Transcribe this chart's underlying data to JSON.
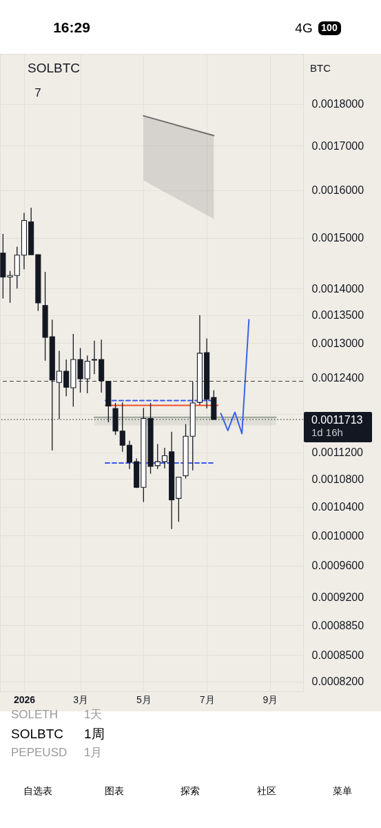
{
  "chart_data": {
    "type": "candlestick",
    "title": "SOLBTC",
    "x": [
      "2025-12-15",
      "2025-12-22",
      "2025-12-29",
      "2026-01-05",
      "2026-01-12",
      "2026-01-19",
      "2026-01-26",
      "2026-02-02",
      "2026-02-09",
      "2026-02-16",
      "2026-02-23",
      "2026-03-02",
      "2026-03-09",
      "2026-03-16",
      "2026-03-23",
      "2026-03-30",
      "2026-04-06",
      "2026-04-13",
      "2026-04-20",
      "2026-04-27",
      "2026-05-04",
      "2026-05-11",
      "2026-05-18",
      "2026-05-25",
      "2026-06-01",
      "2026-06-08",
      "2026-06-15",
      "2026-06-22",
      "2026-06-29",
      "2026-07-06",
      "2026-07-13"
    ],
    "ohlc": [
      [
        0.001469,
        0.001508,
        0.001381,
        0.001422
      ],
      [
        0.001422,
        0.001434,
        0.001373,
        0.001425
      ],
      [
        0.001425,
        0.001482,
        0.0014,
        0.001465
      ],
      [
        0.001465,
        0.001552,
        0.001437,
        0.001536
      ],
      [
        0.001533,
        0.001563,
        0.001466,
        0.001466
      ],
      [
        0.001466,
        0.001466,
        0.001358,
        0.001373
      ],
      [
        0.001368,
        0.001432,
        0.001269,
        0.00131
      ],
      [
        0.001311,
        0.001342,
        0.001123,
        0.001236
      ],
      [
        0.001232,
        0.001286,
        0.001172,
        0.001251
      ],
      [
        0.001251,
        0.001271,
        0.001209,
        0.001224
      ],
      [
        0.001223,
        0.001316,
        0.001192,
        0.001271
      ],
      [
        0.001271,
        0.001291,
        0.001215,
        0.001238
      ],
      [
        0.001238,
        0.001278,
        0.001214,
        0.001268
      ],
      [
        0.00127,
        0.001304,
        0.001246,
        0.001271
      ],
      [
        0.001271,
        0.001306,
        0.001215,
        0.001235
      ],
      [
        0.001234,
        0.001234,
        0.001167,
        0.001193
      ],
      [
        0.001189,
        0.001198,
        0.001147,
        0.001153
      ],
      [
        0.001153,
        0.001199,
        0.001121,
        0.001131
      ],
      [
        0.001131,
        0.001138,
        0.001095,
        0.001105
      ],
      [
        0.001106,
        0.001111,
        0.001067,
        0.001068
      ],
      [
        0.001068,
        0.00119,
        0.001047,
        0.001173
      ],
      [
        0.001173,
        0.001198,
        0.001088,
        0.001099
      ],
      [
        0.0011,
        0.001133,
        0.001095,
        0.001106
      ],
      [
        0.001106,
        0.001127,
        0.001096,
        0.001115
      ],
      [
        0.001121,
        0.001152,
        0.001009,
        0.00105
      ],
      [
        0.001052,
        0.001083,
        0.001019,
        0.001083
      ],
      [
        0.001085,
        0.001164,
        0.001081,
        0.001145
      ],
      [
        0.001145,
        0.001233,
        0.001093,
        0.001198
      ],
      [
        0.001199,
        0.00135,
        0.001195,
        0.001282
      ],
      [
        0.001283,
        0.001308,
        0.001189,
        0.001204
      ],
      [
        0.001207,
        0.001219,
        0.0011713,
        0.0011713
      ]
    ],
    "colors": [
      "#131722",
      "#ffffff",
      "#ffffff",
      "#ffffff",
      "#131722",
      "#131722",
      "#131722",
      "#131722",
      "#ffffff",
      "#131722",
      "#ffffff",
      "#131722",
      "#ffffff",
      "#ffffff",
      "#131722",
      "#131722",
      "#131722",
      "#131722",
      "#131722",
      "#131722",
      "#ffffff",
      "#131722",
      "#ffffff",
      "#ffffff",
      "#131722",
      "#ffffff",
      "#ffffff",
      "#ffffff",
      "#ffffff",
      "#131722",
      "#131722"
    ],
    "xlim": [
      "2025-12-12",
      "2026-10-10"
    ],
    "xticks": [
      {
        "value": "2026-01-05",
        "label": "2026"
      },
      {
        "value": "2026-03-02",
        "label": "3月"
      },
      {
        "value": "2026-05-04",
        "label": "5月"
      },
      {
        "value": "2026-07-06",
        "label": "7月"
      },
      {
        "value": "2026-09-07",
        "label": "9月"
      }
    ],
    "ylim": [
      0.000809,
      0.001927
    ],
    "yticks": [
      {
        "value": 0.0018,
        "label": "0.0018000"
      },
      {
        "value": 0.0017,
        "label": "0.0017000"
      },
      {
        "value": 0.0016,
        "label": "0.0016000"
      },
      {
        "value": 0.0015,
        "label": "0.0015000"
      },
      {
        "value": 0.0014,
        "label": "0.0014000"
      },
      {
        "value": 0.00135,
        "label": "0.0013500"
      },
      {
        "value": 0.0013,
        "label": "0.0013000"
      },
      {
        "value": 0.00124,
        "label": "0.0012400"
      },
      {
        "value": 0.00118,
        "label": null
      },
      {
        "value": 0.00112,
        "label": "0.0011200"
      },
      {
        "value": 0.00108,
        "label": "0.0010800"
      },
      {
        "value": 0.00104,
        "label": "0.0010400"
      },
      {
        "value": 0.001,
        "label": "0.0010000"
      },
      {
        "value": 0.00096,
        "label": "0.0009600"
      },
      {
        "value": 0.00092,
        "label": "0.0009200"
      },
      {
        "value": 0.000885,
        "label": "0.0008850"
      },
      {
        "value": 0.00085,
        "label": "0.0008500"
      },
      {
        "value": 0.00082,
        "label": "0.0008200"
      }
    ],
    "log": true,
    "grid": true,
    "series": [
      {
        "type": "line",
        "x": [
          "2026-05-04",
          "2026-07-13"
        ],
        "values": [
          0.001771,
          0.001724
        ],
        "lower": [
          0.001622,
          0.001539
        ],
        "upper": [
          0.001771,
          0.001724
        ],
        "color": "#6e6e6e"
      },
      {
        "type": "line",
        "x": [
          "2026-03-16",
          "2026-09-13"
        ],
        "values": [
          0.001175,
          0.001175
        ],
        "lower": [
          0.001162,
          0.001162
        ],
        "upper": [
          0.001175,
          0.001175
        ],
        "color": "#9aa39a"
      },
      {
        "type": "line",
        "x": [
          "2026-03-27",
          "2026-07-10"
        ],
        "values": [
          0.001202,
          0.001202
        ],
        "color": "#3a57e8",
        "line_style": "dashed"
      },
      {
        "type": "line",
        "x": [
          "2026-03-27",
          "2026-07-13"
        ],
        "values": [
          0.001104,
          0.001104
        ],
        "color": "#3a57e8",
        "line_style": "dashed"
      },
      {
        "type": "line",
        "x": [
          "2026-03-27",
          "2026-07-17"
        ],
        "values": [
          0.001194,
          0.001194
        ],
        "color": "#f0502d"
      },
      {
        "type": "line",
        "x": [
          "2026-07-20",
          "2026-07-27",
          "2026-08-03",
          "2026-08-10",
          "2026-08-17"
        ],
        "values": [
          0.001181,
          0.001154,
          0.001183,
          0.001149,
          0.001342
        ],
        "color": "#3a62e8"
      }
    ],
    "ref_lines": [
      {
        "axis": "y",
        "value": 0.001234,
        "line_style": "dashed",
        "color": "#3b3b3b"
      },
      {
        "axis": "y",
        "value": 0.0011713,
        "label": "0.0011713",
        "line_style": "dotted",
        "color": "#131722"
      }
    ],
    "annotations": [
      "16:29",
      "4G",
      "100",
      "7",
      "BTC",
      "1d 16h",
      "SOLETH",
      "1天",
      "SOLBTC",
      "1周",
      "PEPEUSD",
      "1月",
      "自选表",
      "图表",
      "探索",
      "社区",
      "菜单"
    ]
  }
}
